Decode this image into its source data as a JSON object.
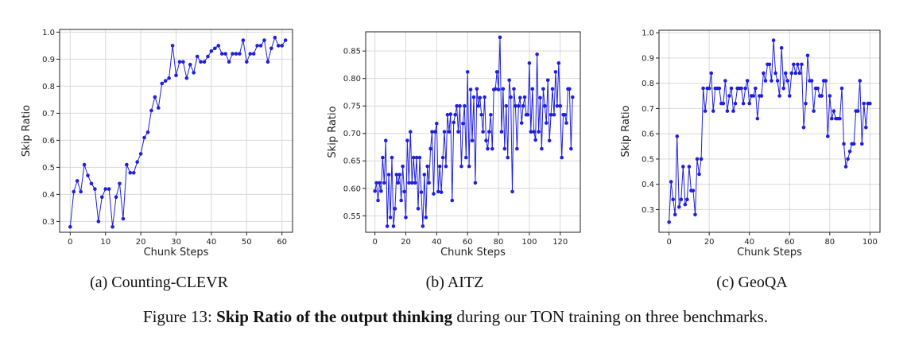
{
  "subcaptions": [
    "(a) Counting-CLEVR",
    "(b) AITZ",
    "(c) GeoQA"
  ],
  "figure_caption": {
    "prefix": "Figure 13: ",
    "bold": "Skip Ratio of the output thinking",
    "suffix": " during our TON training on three benchmarks."
  },
  "colors": {
    "series": "#1f1fdd",
    "grid": "#d9d9d9",
    "axis": "#222222"
  },
  "chart_data": [
    {
      "type": "line",
      "title": "",
      "xlabel": "Chunk Steps",
      "ylabel": "Skip Ratio",
      "xlim": [
        -3,
        63
      ],
      "ylim": [
        0.26,
        1.01
      ],
      "xticks": [
        0,
        10,
        20,
        30,
        40,
        50,
        60
      ],
      "yticks": [
        0.3,
        0.4,
        0.5,
        0.6,
        0.7,
        0.8,
        0.9,
        1.0
      ],
      "grid": true,
      "x": [
        0,
        1,
        2,
        3,
        4,
        5,
        6,
        7,
        8,
        9,
        10,
        11,
        12,
        13,
        14,
        15,
        16,
        17,
        18,
        19,
        20,
        21,
        22,
        23,
        24,
        25,
        26,
        27,
        28,
        29,
        30,
        31,
        32,
        33,
        34,
        35,
        36,
        37,
        38,
        39,
        40,
        41,
        42,
        43,
        44,
        45,
        46,
        47,
        48,
        49,
        50,
        51,
        52,
        53,
        54,
        55,
        56,
        57,
        58,
        59,
        60,
        61
      ],
      "y": [
        0.28,
        0.41,
        0.45,
        0.41,
        0.51,
        0.47,
        0.44,
        0.42,
        0.3,
        0.39,
        0.42,
        0.42,
        0.28,
        0.39,
        0.44,
        0.31,
        0.51,
        0.48,
        0.48,
        0.52,
        0.55,
        0.61,
        0.63,
        0.71,
        0.76,
        0.72,
        0.81,
        0.82,
        0.83,
        0.95,
        0.84,
        0.89,
        0.89,
        0.83,
        0.88,
        0.85,
        0.91,
        0.89,
        0.89,
        0.91,
        0.93,
        0.94,
        0.95,
        0.92,
        0.92,
        0.89,
        0.92,
        0.92,
        0.92,
        0.97,
        0.89,
        0.92,
        0.92,
        0.95,
        0.95,
        0.97,
        0.89,
        0.94,
        0.98,
        0.95,
        0.95,
        0.97
      ]
    },
    {
      "type": "line",
      "title": "",
      "xlabel": "Chunk Steps",
      "ylabel": "Skip Ratio",
      "xlim": [
        -6,
        133
      ],
      "ylim": [
        0.52,
        0.885
      ],
      "xticks": [
        0,
        20,
        40,
        60,
        80,
        100,
        120
      ],
      "yticks": [
        0.55,
        0.6,
        0.65,
        0.7,
        0.75,
        0.8,
        0.85
      ],
      "grid": true,
      "x": [
        0,
        1,
        2,
        3,
        4,
        5,
        6,
        7,
        8,
        9,
        10,
        11,
        12,
        13,
        14,
        15,
        16,
        17,
        18,
        19,
        20,
        21,
        22,
        23,
        24,
        25,
        26,
        27,
        28,
        29,
        30,
        31,
        32,
        33,
        34,
        35,
        36,
        37,
        38,
        39,
        40,
        41,
        42,
        43,
        44,
        45,
        46,
        47,
        48,
        49,
        50,
        51,
        52,
        53,
        54,
        55,
        56,
        57,
        58,
        59,
        60,
        61,
        62,
        63,
        64,
        65,
        66,
        67,
        68,
        69,
        70,
        71,
        72,
        73,
        74,
        75,
        76,
        77,
        78,
        79,
        80,
        81,
        82,
        83,
        84,
        85,
        86,
        87,
        88,
        89,
        90,
        91,
        92,
        93,
        94,
        95,
        96,
        97,
        98,
        99,
        100,
        101,
        102,
        103,
        104,
        105,
        106,
        107,
        108,
        109,
        110,
        111,
        112,
        113,
        114,
        115,
        116,
        117,
        118,
        119,
        120,
        121,
        122,
        123,
        124,
        125,
        126,
        127,
        128
      ],
      "y": [
        0.595,
        0.61,
        0.578,
        0.61,
        0.595,
        0.656,
        0.61,
        0.687,
        0.531,
        0.625,
        0.547,
        0.656,
        0.531,
        0.563,
        0.625,
        0.61,
        0.625,
        0.578,
        0.64,
        0.594,
        0.547,
        0.687,
        0.61,
        0.703,
        0.61,
        0.656,
        0.61,
        0.656,
        0.563,
        0.656,
        0.593,
        0.531,
        0.625,
        0.547,
        0.64,
        0.61,
        0.672,
        0.703,
        0.59,
        0.703,
        0.718,
        0.594,
        0.64,
        0.593,
        0.656,
        0.703,
        0.64,
        0.734,
        0.703,
        0.735,
        0.578,
        0.72,
        0.734,
        0.75,
        0.703,
        0.75,
        0.64,
        0.718,
        0.75,
        0.656,
        0.812,
        0.64,
        0.78,
        0.687,
        0.766,
        0.61,
        0.781,
        0.75,
        0.765,
        0.734,
        0.703,
        0.766,
        0.687,
        0.672,
        0.703,
        0.734,
        0.672,
        0.78,
        0.781,
        0.812,
        0.78,
        0.875,
        0.703,
        0.781,
        0.672,
        0.75,
        0.656,
        0.797,
        0.766,
        0.594,
        0.781,
        0.75,
        0.672,
        0.75,
        0.765,
        0.719,
        0.75,
        0.766,
        0.734,
        0.734,
        0.828,
        0.703,
        0.781,
        0.703,
        0.688,
        0.844,
        0.703,
        0.765,
        0.672,
        0.781,
        0.75,
        0.719,
        0.797,
        0.687,
        0.734,
        0.781,
        0.734,
        0.812,
        0.75,
        0.828,
        0.75,
        0.656,
        0.734,
        0.734,
        0.719,
        0.781,
        0.781,
        0.672,
        0.766
      ]
    },
    {
      "type": "line",
      "title": "",
      "xlabel": "Chunk Steps",
      "ylabel": "Skip Ratio",
      "xlim": [
        -5,
        105
      ],
      "ylim": [
        0.21,
        1.01
      ],
      "xticks": [
        0,
        20,
        40,
        60,
        80,
        100
      ],
      "yticks": [
        0.3,
        0.4,
        0.5,
        0.6,
        0.7,
        0.8,
        0.9,
        1.0
      ],
      "grid": true,
      "x": [
        0,
        1,
        2,
        3,
        4,
        5,
        6,
        7,
        8,
        9,
        10,
        11,
        12,
        13,
        14,
        15,
        16,
        17,
        18,
        19,
        20,
        21,
        22,
        23,
        24,
        25,
        26,
        27,
        28,
        29,
        30,
        31,
        32,
        33,
        34,
        35,
        36,
        37,
        38,
        39,
        40,
        41,
        42,
        43,
        44,
        45,
        46,
        47,
        48,
        49,
        50,
        51,
        52,
        53,
        54,
        55,
        56,
        57,
        58,
        59,
        60,
        61,
        62,
        63,
        64,
        65,
        66,
        67,
        68,
        69,
        70,
        71,
        72,
        73,
        74,
        75,
        76,
        77,
        78,
        79,
        80,
        81,
        82,
        83,
        84,
        85,
        86,
        87,
        88,
        89,
        90,
        91,
        92,
        93,
        94,
        95,
        96,
        97,
        98,
        99,
        100
      ],
      "y": [
        0.25,
        0.41,
        0.34,
        0.28,
        0.59,
        0.31,
        0.34,
        0.47,
        0.32,
        0.34,
        0.47,
        0.375,
        0.375,
        0.28,
        0.5,
        0.44,
        0.5,
        0.78,
        0.69,
        0.78,
        0.78,
        0.84,
        0.69,
        0.78,
        0.78,
        0.78,
        0.72,
        0.72,
        0.81,
        0.69,
        0.75,
        0.78,
        0.69,
        0.72,
        0.78,
        0.78,
        0.78,
        0.72,
        0.78,
        0.81,
        0.72,
        0.75,
        0.75,
        0.78,
        0.66,
        0.75,
        0.75,
        0.84,
        0.81,
        0.875,
        0.875,
        0.81,
        0.97,
        0.84,
        0.81,
        0.75,
        0.94,
        0.78,
        0.84,
        0.81,
        0.75,
        0.84,
        0.875,
        0.84,
        0.875,
        0.84,
        0.875,
        0.625,
        0.72,
        0.91,
        0.81,
        0.81,
        0.69,
        0.78,
        0.78,
        0.75,
        0.75,
        0.81,
        0.81,
        0.59,
        0.75,
        0.66,
        0.69,
        0.66,
        0.66,
        0.66,
        0.78,
        0.56,
        0.47,
        0.5,
        0.53,
        0.56,
        0.56,
        0.69,
        0.69,
        0.81,
        0.56,
        0.72,
        0.625,
        0.72,
        0.72
      ]
    }
  ]
}
